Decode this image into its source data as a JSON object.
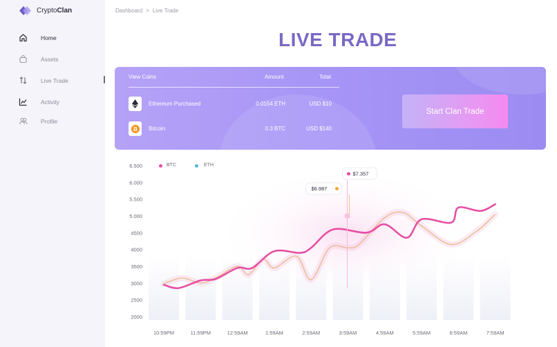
{
  "app": {
    "brand_prefix": "Crypto",
    "brand_bold": "Clan"
  },
  "sidebar": {
    "items": [
      {
        "label": "Home",
        "icon": "home-icon"
      },
      {
        "label": "Assets",
        "icon": "bag-icon"
      },
      {
        "label": "Live Trade",
        "icon": "arrows-updown-icon"
      },
      {
        "label": "Activity",
        "icon": "chart-icon"
      },
      {
        "label": "Profile",
        "icon": "users-icon"
      }
    ]
  },
  "breadcrumb": {
    "parent": "Dashboard",
    "separator": ">",
    "current": "Live Trade"
  },
  "page_title": "LIVE TRADE",
  "trade_table": {
    "headers": {
      "coins": "View Coins",
      "amount": "Amount",
      "total": "Total"
    },
    "rows": [
      {
        "name": "Ethereum Purchased",
        "amount": "0.0154 ETH",
        "total": "USD $10",
        "icon": "ethereum-icon"
      },
      {
        "name": "Bitcoin",
        "amount": "0.3 BTC",
        "total": "USD $140",
        "icon": "bitcoin-icon"
      }
    ]
  },
  "trade_button": "Start Clan Trade",
  "colors": {
    "accent": "#7a68c4",
    "btc": "#e64fa3",
    "eth": "#5ab3e6",
    "eth_line": "#e9b88a"
  },
  "chart_data": {
    "type": "line",
    "x": [
      "10:59PM",
      "11:59PM",
      "12:59AM",
      "1:59AM",
      "2:59AM",
      "3:59AM",
      "4:59AM",
      "5:59AM",
      "6:59AM",
      "7:59AM"
    ],
    "y_ticks": [
      "6.500",
      "6.000",
      "5.500",
      "5.000",
      "4500",
      "4000",
      "3500",
      "3000",
      "2500",
      "2000"
    ],
    "legend": [
      "BTC",
      "ETH"
    ],
    "tooltips": [
      {
        "label": "$6.987",
        "series": "ETH"
      },
      {
        "label": "$7.357",
        "series": "BTC"
      }
    ],
    "series": [
      {
        "name": "BTC",
        "points": [
          [
            0,
            2950
          ],
          [
            0.4,
            2850
          ],
          [
            1,
            3080
          ],
          [
            1.4,
            3120
          ],
          [
            2,
            3450
          ],
          [
            2.4,
            3450
          ],
          [
            3,
            3950
          ],
          [
            3.7,
            3900
          ],
          [
            4,
            4050
          ],
          [
            4.6,
            4600
          ],
          [
            5.5,
            4500
          ],
          [
            6,
            4750
          ],
          [
            6.6,
            4350
          ],
          [
            7,
            4900
          ],
          [
            7.8,
            4800
          ],
          [
            8,
            5250
          ],
          [
            8.6,
            5150
          ],
          [
            9,
            5350
          ]
        ]
      },
      {
        "name": "ETH",
        "points": [
          [
            0,
            2980
          ],
          [
            0.5,
            3150
          ],
          [
            1,
            3000
          ],
          [
            1.4,
            3150
          ],
          [
            2,
            3500
          ],
          [
            2.3,
            3250
          ],
          [
            2.7,
            3700
          ],
          [
            3,
            3450
          ],
          [
            3.6,
            3800
          ],
          [
            4,
            3100
          ],
          [
            4.5,
            4050
          ],
          [
            5,
            4050
          ],
          [
            5.3,
            4150
          ],
          [
            6,
            4950
          ],
          [
            6.5,
            5100
          ],
          [
            7,
            4700
          ],
          [
            7.8,
            4150
          ],
          [
            8.5,
            4550
          ],
          [
            9,
            5050
          ]
        ]
      }
    ],
    "ylim": [
      2000,
      6500
    ]
  }
}
